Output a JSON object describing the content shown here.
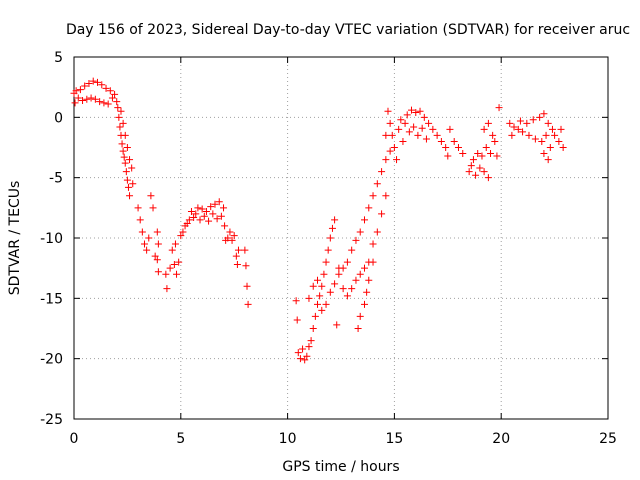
{
  "chart_data": {
    "type": "scatter",
    "title": "Day 156 of 2023, Sidereal Day-to-day VTEC variation (SDTVAR) for receiver aruc",
    "xlabel": "GPS time / hours",
    "ylabel": "SDTVAR / TECUs",
    "xlim": [
      0,
      25
    ],
    "ylim": [
      -25,
      5
    ],
    "xticks": [
      0,
      5,
      10,
      15,
      20,
      25
    ],
    "yticks": [
      -25,
      -20,
      -15,
      -10,
      -5,
      0,
      5
    ],
    "grid": true,
    "legend": "none",
    "marker": "+",
    "color": "#ff0000",
    "series": [
      {
        "name": "SDTVAR",
        "points": [
          [
            0.0,
            2.0
          ],
          [
            0.05,
            1.2
          ],
          [
            0.1,
            2.2
          ],
          [
            0.2,
            1.6
          ],
          [
            0.3,
            2.3
          ],
          [
            0.4,
            1.4
          ],
          [
            0.5,
            2.6
          ],
          [
            0.6,
            1.5
          ],
          [
            0.7,
            2.8
          ],
          [
            0.8,
            1.6
          ],
          [
            0.9,
            3.0
          ],
          [
            1.0,
            1.5
          ],
          [
            1.1,
            2.9
          ],
          [
            1.2,
            1.3
          ],
          [
            1.3,
            2.7
          ],
          [
            1.4,
            1.2
          ],
          [
            1.5,
            2.4
          ],
          [
            1.6,
            1.1
          ],
          [
            1.7,
            2.2
          ],
          [
            1.8,
            1.6
          ],
          [
            1.9,
            1.9
          ],
          [
            2.0,
            1.3
          ],
          [
            2.05,
            0.8
          ],
          [
            2.1,
            0.0
          ],
          [
            2.15,
            -0.8
          ],
          [
            2.2,
            -1.5
          ],
          [
            2.25,
            -2.2
          ],
          [
            2.3,
            -2.8
          ],
          [
            2.35,
            -3.3
          ],
          [
            2.4,
            -3.8
          ],
          [
            2.45,
            -4.5
          ],
          [
            2.5,
            -5.2
          ],
          [
            2.55,
            -5.8
          ],
          [
            2.6,
            -6.5
          ],
          [
            2.2,
            0.5
          ],
          [
            2.3,
            -0.5
          ],
          [
            2.4,
            -1.5
          ],
          [
            2.5,
            -2.5
          ],
          [
            2.6,
            -3.5
          ],
          [
            2.7,
            -4.2
          ],
          [
            2.75,
            -5.5
          ],
          [
            3.0,
            -7.5
          ],
          [
            3.1,
            -8.5
          ],
          [
            3.2,
            -9.5
          ],
          [
            3.3,
            -10.5
          ],
          [
            3.4,
            -11.0
          ],
          [
            3.5,
            -10.0
          ],
          [
            3.6,
            -6.5
          ],
          [
            3.7,
            -7.5
          ],
          [
            3.8,
            -11.5
          ],
          [
            3.9,
            -11.8
          ],
          [
            3.95,
            -12.8
          ],
          [
            3.9,
            -9.5
          ],
          [
            3.95,
            -10.5
          ],
          [
            4.3,
            -13.0
          ],
          [
            4.35,
            -14.2
          ],
          [
            4.5,
            -12.5
          ],
          [
            4.6,
            -11.0
          ],
          [
            4.7,
            -12.2
          ],
          [
            4.75,
            -10.5
          ],
          [
            4.8,
            -13.0
          ],
          [
            4.9,
            -12.0
          ],
          [
            5.0,
            -9.8
          ],
          [
            5.1,
            -9.5
          ],
          [
            5.2,
            -9.0
          ],
          [
            5.3,
            -8.8
          ],
          [
            5.4,
            -8.5
          ],
          [
            5.5,
            -7.8
          ],
          [
            5.6,
            -8.3
          ],
          [
            5.7,
            -8.0
          ],
          [
            5.8,
            -7.5
          ],
          [
            5.9,
            -8.5
          ],
          [
            6.0,
            -7.6
          ],
          [
            6.1,
            -8.2
          ],
          [
            6.2,
            -7.8
          ],
          [
            6.3,
            -8.6
          ],
          [
            6.4,
            -7.4
          ],
          [
            6.5,
            -8.0
          ],
          [
            6.6,
            -7.2
          ],
          [
            6.7,
            -8.4
          ],
          [
            6.8,
            -7.0
          ],
          [
            6.9,
            -8.2
          ],
          [
            7.0,
            -7.5
          ],
          [
            7.05,
            -9.0
          ],
          [
            7.1,
            -10.2
          ],
          [
            7.2,
            -10.0
          ],
          [
            7.3,
            -9.5
          ],
          [
            7.4,
            -10.2
          ],
          [
            7.5,
            -9.8
          ],
          [
            7.6,
            -11.5
          ],
          [
            7.65,
            -12.2
          ],
          [
            7.7,
            -11.0
          ],
          [
            8.0,
            -11.0
          ],
          [
            8.05,
            -12.3
          ],
          [
            8.1,
            -14.0
          ],
          [
            8.15,
            -15.5
          ],
          [
            10.4,
            -15.2
          ],
          [
            10.45,
            -16.8
          ],
          [
            10.5,
            -19.5
          ],
          [
            10.6,
            -20.0
          ],
          [
            10.7,
            -19.2
          ],
          [
            10.8,
            -20.1
          ],
          [
            10.9,
            -19.8
          ],
          [
            11.0,
            -19.0
          ],
          [
            11.1,
            -18.5
          ],
          [
            11.2,
            -17.5
          ],
          [
            11.3,
            -16.5
          ],
          [
            11.4,
            -15.5
          ],
          [
            11.5,
            -14.8
          ],
          [
            11.6,
            -14.0
          ],
          [
            11.7,
            -13.0
          ],
          [
            11.8,
            -12.0
          ],
          [
            11.9,
            -11.0
          ],
          [
            12.0,
            -10.0
          ],
          [
            12.1,
            -9.2
          ],
          [
            12.2,
            -8.5
          ],
          [
            11.0,
            -15.0
          ],
          [
            11.2,
            -14.0
          ],
          [
            11.4,
            -13.5
          ],
          [
            11.6,
            -16.0
          ],
          [
            11.8,
            -15.5
          ],
          [
            12.0,
            -14.5
          ],
          [
            12.2,
            -13.8
          ],
          [
            12.4,
            -13.0
          ],
          [
            12.6,
            -12.5
          ],
          [
            12.8,
            -12.0
          ],
          [
            13.0,
            -11.0
          ],
          [
            13.2,
            -10.2
          ],
          [
            13.4,
            -9.5
          ],
          [
            13.6,
            -8.5
          ],
          [
            13.8,
            -7.5
          ],
          [
            14.0,
            -6.5
          ],
          [
            14.2,
            -5.5
          ],
          [
            14.4,
            -4.5
          ],
          [
            14.6,
            -3.5
          ],
          [
            14.8,
            -2.8
          ],
          [
            12.3,
            -17.2
          ],
          [
            12.4,
            -12.5
          ],
          [
            12.6,
            -14.2
          ],
          [
            12.8,
            -14.8
          ],
          [
            13.0,
            -14.2
          ],
          [
            13.2,
            -13.5
          ],
          [
            13.4,
            -13.0
          ],
          [
            13.6,
            -12.5
          ],
          [
            13.8,
            -12.0
          ],
          [
            13.3,
            -17.5
          ],
          [
            13.4,
            -16.5
          ],
          [
            13.6,
            -15.5
          ],
          [
            13.7,
            -14.5
          ],
          [
            13.8,
            -13.5
          ],
          [
            14.0,
            -12.0
          ],
          [
            14.0,
            -10.5
          ],
          [
            14.2,
            -9.5
          ],
          [
            14.4,
            -8.0
          ],
          [
            14.6,
            -6.5
          ],
          [
            14.6,
            -1.5
          ],
          [
            14.7,
            0.5
          ],
          [
            14.8,
            -0.5
          ],
          [
            14.9,
            -1.5
          ],
          [
            15.0,
            -2.5
          ],
          [
            15.1,
            -3.5
          ],
          [
            15.2,
            -1.0
          ],
          [
            15.3,
            -0.2
          ],
          [
            15.4,
            -2.0
          ],
          [
            15.5,
            -0.5
          ],
          [
            15.6,
            0.2
          ],
          [
            15.7,
            -1.2
          ],
          [
            15.8,
            0.6
          ],
          [
            15.9,
            -0.8
          ],
          [
            16.0,
            0.4
          ],
          [
            16.1,
            -1.5
          ],
          [
            16.2,
            0.5
          ],
          [
            16.3,
            -0.9
          ],
          [
            16.4,
            0.0
          ],
          [
            16.5,
            -1.8
          ],
          [
            16.6,
            -0.5
          ],
          [
            16.8,
            -1.0
          ],
          [
            17.0,
            -1.5
          ],
          [
            17.2,
            -2.0
          ],
          [
            17.4,
            -2.5
          ],
          [
            17.5,
            -3.2
          ],
          [
            17.6,
            -1.0
          ],
          [
            17.8,
            -2.0
          ],
          [
            18.0,
            -2.5
          ],
          [
            18.2,
            -3.0
          ],
          [
            18.5,
            -4.5
          ],
          [
            18.6,
            -4.0
          ],
          [
            18.7,
            -3.5
          ],
          [
            18.8,
            -4.8
          ],
          [
            18.9,
            -3.0
          ],
          [
            19.0,
            -4.2
          ],
          [
            19.1,
            -3.2
          ],
          [
            19.2,
            -4.5
          ],
          [
            19.3,
            -2.5
          ],
          [
            19.4,
            -5.0
          ],
          [
            19.5,
            -3.0
          ],
          [
            19.6,
            -1.5
          ],
          [
            19.7,
            -2.0
          ],
          [
            19.8,
            -3.2
          ],
          [
            19.2,
            -1.0
          ],
          [
            19.4,
            -0.5
          ],
          [
            19.9,
            0.8
          ],
          [
            20.4,
            -0.5
          ],
          [
            20.5,
            -1.5
          ],
          [
            20.6,
            -0.8
          ],
          [
            20.8,
            -1.0
          ],
          [
            20.9,
            -0.3
          ],
          [
            21.0,
            -1.2
          ],
          [
            21.2,
            -0.5
          ],
          [
            21.3,
            -1.5
          ],
          [
            21.5,
            -0.2
          ],
          [
            21.6,
            -1.8
          ],
          [
            21.8,
            0.0
          ],
          [
            21.9,
            -2.0
          ],
          [
            22.0,
            0.3
          ],
          [
            22.1,
            -1.5
          ],
          [
            22.2,
            -0.5
          ],
          [
            22.3,
            -2.5
          ],
          [
            22.0,
            -3.0
          ],
          [
            22.2,
            -3.5
          ],
          [
            22.4,
            -1.0
          ],
          [
            22.5,
            -1.5
          ],
          [
            22.7,
            -2.0
          ],
          [
            22.8,
            -1.0
          ],
          [
            22.9,
            -2.5
          ]
        ]
      }
    ]
  }
}
